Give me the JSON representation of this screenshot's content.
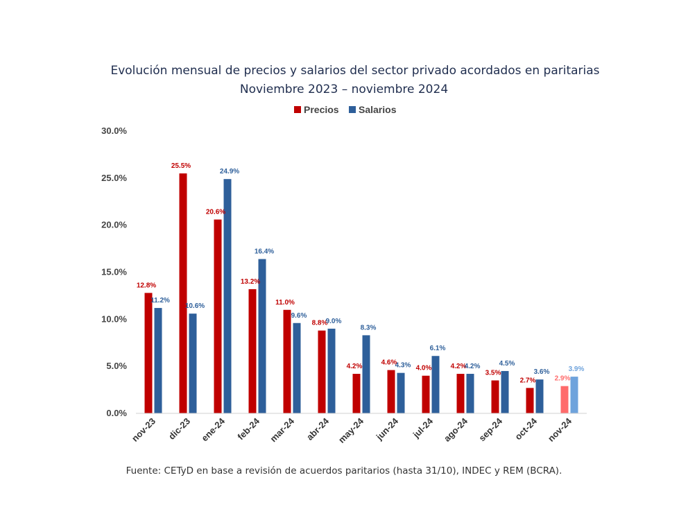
{
  "chart_data": {
    "type": "bar",
    "title": "Evolución mensual de precios y salarios del sector privado acordados en paritarias",
    "subtitle": "Noviembre 2023 – noviembre 2024",
    "categories": [
      "nov-23",
      "dic-23",
      "ene-24",
      "feb-24",
      "mar-24",
      "abr-24",
      "may-24",
      "jun-24",
      "jul-24",
      "ago-24",
      "sep-24",
      "oct-24",
      "nov-24"
    ],
    "series": [
      {
        "name": "Precios",
        "color": "#c00000",
        "projected_color": "#ff6b6b",
        "values": [
          12.8,
          25.5,
          20.6,
          13.2,
          11.0,
          8.8,
          4.2,
          4.6,
          4.0,
          4.2,
          3.5,
          2.7,
          2.9
        ],
        "labels": [
          "12.8%",
          "25.5%",
          "20.6%",
          "13.2%",
          "11.0%",
          "8.8%",
          "4.2%",
          "4.6%",
          "4.0%",
          "4.2%",
          "3.5%",
          "2.7%",
          "2.9%"
        ]
      },
      {
        "name": "Salarios",
        "color": "#2e5f9a",
        "projected_color": "#6fa3dc",
        "values": [
          11.2,
          10.6,
          24.9,
          16.4,
          9.6,
          9.0,
          8.3,
          4.3,
          6.1,
          4.2,
          4.5,
          3.6,
          3.9
        ],
        "labels": [
          "11.2%",
          "10.6%",
          "24.9%",
          "16.4%",
          "9.6%",
          "9.0%",
          "8.3%",
          "4.3%",
          "6.1%",
          "4.2%",
          "4.5%",
          "3.6%",
          "3.9%"
        ]
      }
    ],
    "projected_category_index": 12,
    "ylim": [
      0,
      30
    ],
    "yticks": [
      0,
      5,
      10,
      15,
      20,
      25,
      30
    ],
    "ytick_labels": [
      "0.0%",
      "5.0%",
      "10.0%",
      "15.0%",
      "20.0%",
      "25.0%",
      "30.0%"
    ],
    "xlabel": "",
    "ylabel": "",
    "grid": false,
    "legend_position": "top-center",
    "source": "Fuente: CETyD en base a revisión de acuerdos paritarios (hasta 31/10), INDEC y REM (BCRA)."
  }
}
